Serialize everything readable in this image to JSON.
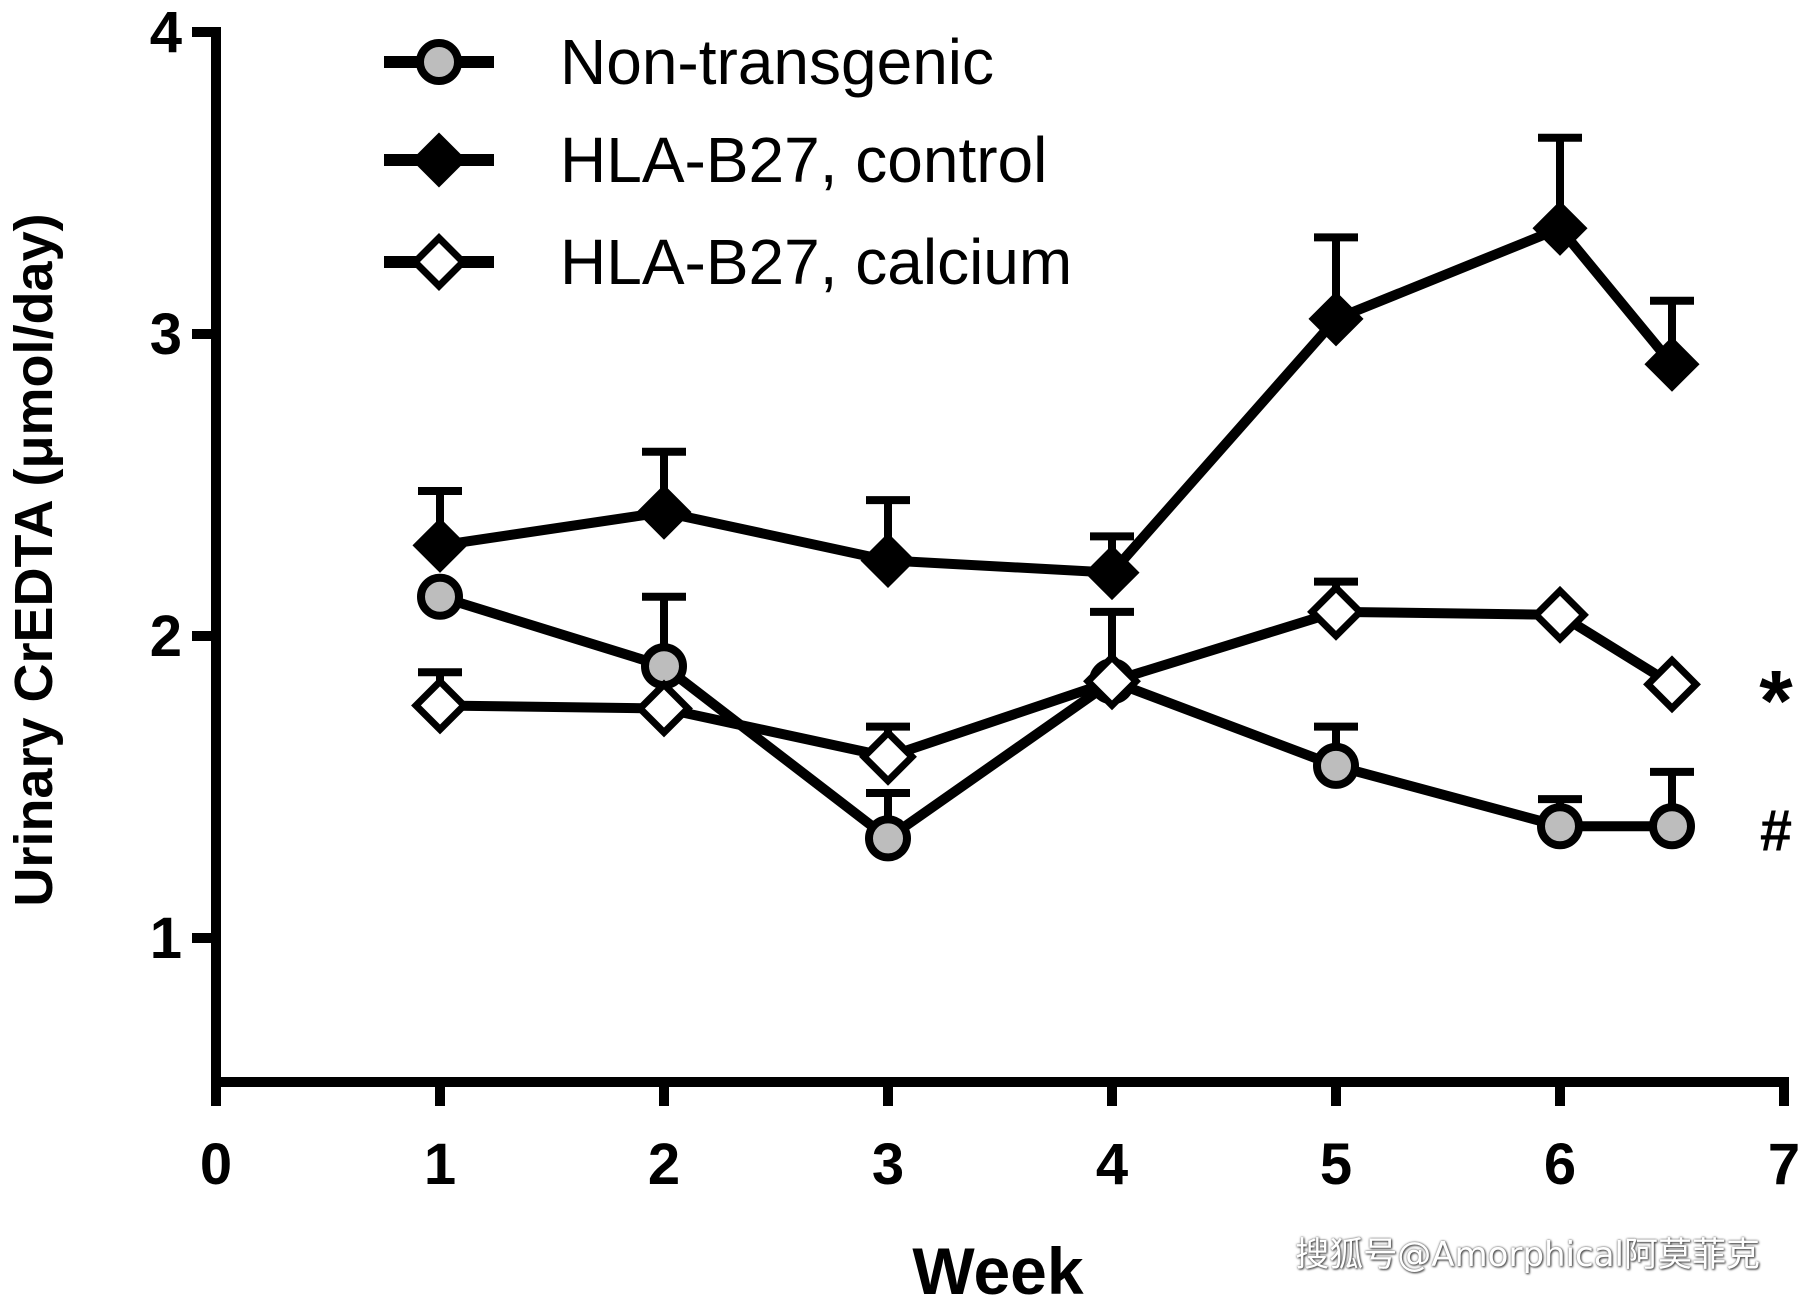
{
  "chart_data": {
    "type": "line",
    "xlabel": "Week",
    "ylabel": "Urinary CrEDTA (μmol/day)",
    "xlim": [
      0,
      7
    ],
    "ylim": [
      0.5,
      4
    ],
    "x_ticks": [
      0,
      1,
      2,
      3,
      4,
      5,
      6,
      7
    ],
    "y_ticks": [
      1,
      2,
      3,
      4
    ],
    "grid": false,
    "legend_position": "top-left",
    "series": [
      {
        "name": "Non-transgenic",
        "marker": "circle-gray",
        "x": [
          1,
          2,
          3,
          4,
          5,
          6,
          6.5
        ],
        "y": [
          2.13,
          1.9,
          1.33,
          1.85,
          1.57,
          1.37,
          1.37
        ],
        "error": [
          0,
          0.23,
          0.15,
          0,
          0.13,
          0.09,
          0.18
        ]
      },
      {
        "name": "HLA-B27, control",
        "marker": "diamond-filled",
        "x": [
          1,
          2,
          3,
          4,
          5,
          6,
          6.5
        ],
        "y": [
          2.3,
          2.41,
          2.25,
          2.21,
          3.05,
          3.35,
          2.9
        ],
        "error": [
          0.18,
          0.2,
          0.2,
          0.12,
          0.27,
          0.3,
          0.21
        ]
      },
      {
        "name": "HLA-B27, calcium",
        "marker": "diamond-open",
        "x": [
          1,
          2,
          3,
          4,
          5,
          6,
          6.5
        ],
        "y": [
          1.77,
          1.76,
          1.6,
          1.85,
          2.08,
          2.07,
          1.84
        ],
        "error": [
          0.11,
          0,
          0.1,
          0.23,
          0.1,
          0,
          0
        ]
      }
    ],
    "annotations": [
      {
        "text": "*",
        "series": "HLA-B27, calcium"
      },
      {
        "text": "#",
        "series": "Non-transgenic"
      }
    ]
  },
  "watermark": "搜狐号@Amorphical阿莫菲克"
}
